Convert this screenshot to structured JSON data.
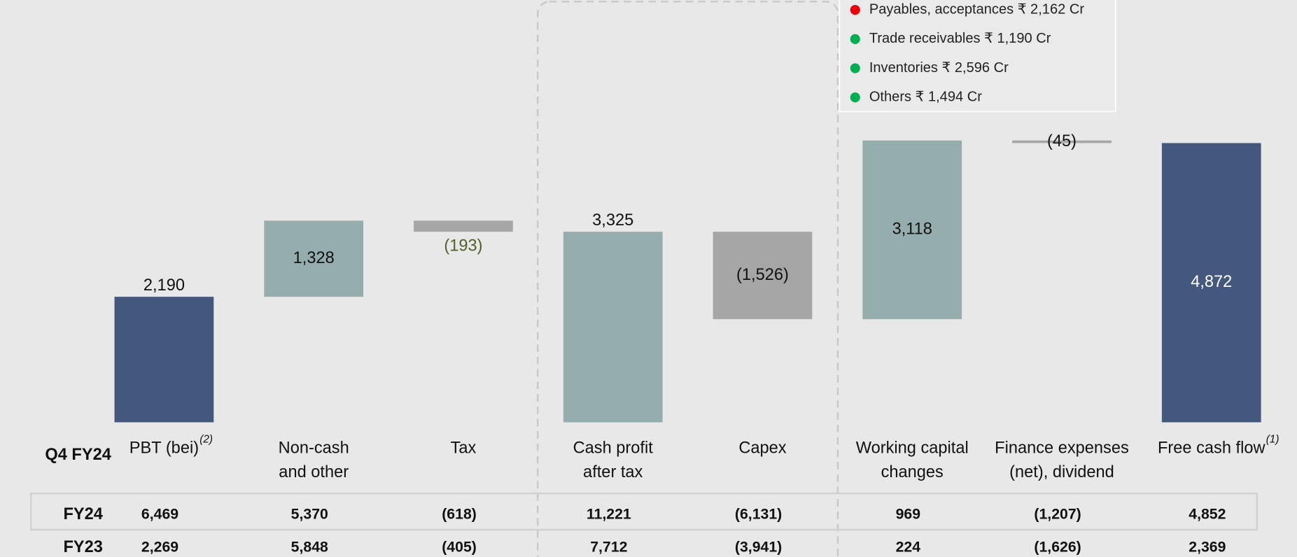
{
  "chart_data": {
    "type": "waterfall",
    "categories": [
      [
        "PBT (bei)"
      ],
      [
        "Non-cash",
        "and other"
      ],
      [
        "Tax"
      ],
      [
        "Cash  profit",
        "after tax"
      ],
      [
        "Capex"
      ],
      [
        "Working capital",
        "changes"
      ],
      [
        "Finance expenses",
        "(net), dividend"
      ],
      [
        "Free cash flow"
      ]
    ],
    "category_notes": [
      "(2)",
      null,
      null,
      null,
      null,
      null,
      null,
      "(1)"
    ],
    "values": [
      2190,
      1328,
      -193,
      3325,
      -1526,
      3118,
      -45,
      4872
    ],
    "value_labels": [
      "2,190",
      "1,328",
      "(193)",
      "3,325",
      "(1,526)",
      "3,118",
      "(45)",
      "4,872"
    ],
    "is_total": [
      true,
      false,
      false,
      true,
      false,
      false,
      false,
      true
    ],
    "colors": [
      "#44587e",
      "#95adac",
      "#a6a6a6",
      "#95adac",
      "#a6a6a6",
      "#95adac",
      "#a6a6a6",
      "#44587e"
    ],
    "period_label": "Q4 FY24",
    "legend": [
      {
        "text": "Payables, acceptances ₹ 2,162 Cr",
        "color": "#e8000b"
      },
      {
        "text": "Trade receivables ₹ 1,190 Cr",
        "color": "#00b050"
      },
      {
        "text": "Inventories ₹ 2,596 Cr",
        "color": "#00b050"
      },
      {
        "text": "Others ₹ 1,494 Cr",
        "color": "#00b050"
      }
    ]
  },
  "table": {
    "rows": [
      {
        "label": "FY24",
        "values": [
          "6,469",
          "5,370",
          "(618)",
          "11,221",
          "(6,131)",
          "969",
          "(1,207)",
          "4,852"
        ]
      },
      {
        "label": "FY23",
        "values": [
          "2,269",
          "5,848",
          "(405)",
          "7,712",
          "(3,941)",
          "224",
          "(1,626)",
          "2,369"
        ]
      }
    ]
  }
}
